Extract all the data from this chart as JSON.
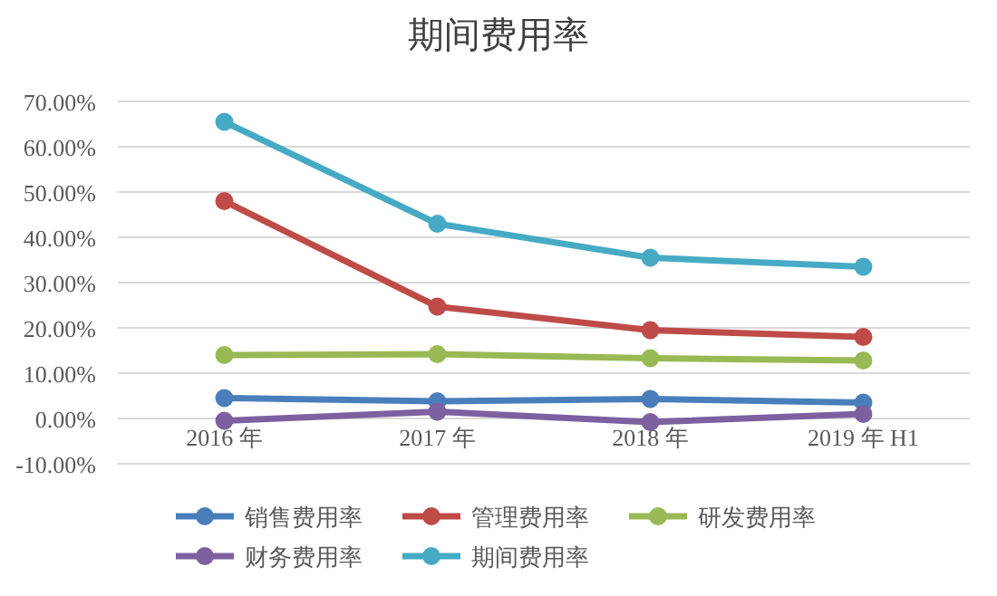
{
  "chart_data": {
    "type": "line",
    "title": "期间费用率",
    "categories": [
      "2016 年",
      "2017 年",
      "2018 年",
      "2019 年 H1"
    ],
    "series": [
      {
        "name": "销售费用率",
        "color": "#4a7ebb",
        "values": [
          4.5,
          3.8,
          4.3,
          3.5
        ]
      },
      {
        "name": "管理费用率",
        "color": "#be4b48",
        "values": [
          48,
          24.7,
          19.5,
          18
        ]
      },
      {
        "name": "研发费用率",
        "color": "#98b954",
        "values": [
          14,
          14.2,
          13.3,
          12.8
        ]
      },
      {
        "name": "财务费用率",
        "color": "#7d60a0",
        "values": [
          -0.5,
          1.5,
          -0.8,
          1
        ]
      },
      {
        "name": "期间费用率",
        "color": "#46aac5",
        "values": [
          65.5,
          43,
          35.5,
          33.5
        ]
      }
    ],
    "ylim": [
      -10,
      70
    ],
    "yticks": [
      {
        "value": -10,
        "label": "-10.00%"
      },
      {
        "value": 0,
        "label": "0.00%"
      },
      {
        "value": 10,
        "label": "10.00%"
      },
      {
        "value": 20,
        "label": "20.00%"
      },
      {
        "value": 30,
        "label": "30.00%"
      },
      {
        "value": 40,
        "label": "40.00%"
      },
      {
        "value": 50,
        "label": "50.00%"
      },
      {
        "value": 60,
        "label": "60.00%"
      },
      {
        "value": 70,
        "label": "70.00%"
      }
    ],
    "grid": "y",
    "legend": "bottom",
    "marker": "circle"
  }
}
